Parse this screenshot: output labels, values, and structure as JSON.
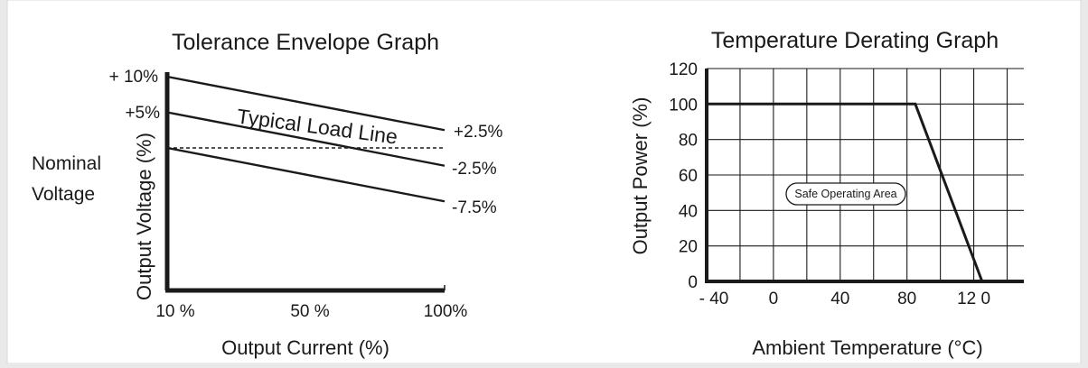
{
  "panel": {
    "background": "#ffffff",
    "border": "#d9d9d9",
    "page": "#e9e9e9",
    "ink": "#1a1a1a"
  },
  "chart_data": [
    {
      "type": "line",
      "title": "Tolerance Envelope Graph",
      "xlabel": "Output Current (%)",
      "ylabel": "Output Voltage (%)",
      "side_label": [
        "Nominal",
        "Voltage"
      ],
      "x_ticks": [
        "10 %",
        "50 %",
        "100%"
      ],
      "left_labels": [
        "+ 10%",
        "+5%"
      ],
      "right_labels": [
        "+2.5%",
        "-2.5%",
        "-7.5%"
      ],
      "annotation": "Typical Load Line",
      "xlim": [
        10,
        100
      ],
      "ylim": [
        -20,
        10
      ],
      "series": [
        {
          "x": [
            10,
            100
          ],
          "y": [
            10,
            2.5
          ]
        },
        {
          "x": [
            10,
            100
          ],
          "y": [
            5,
            -2.5
          ]
        },
        {
          "x": [
            10,
            100
          ],
          "y": [
            0,
            -7.5
          ]
        },
        {
          "x": [
            10,
            100
          ],
          "y": [
            0,
            0
          ],
          "dashed": true
        }
      ]
    },
    {
      "type": "line",
      "title": "Temperature Derating Graph",
      "xlabel": "Ambient Temperature (°C)",
      "ylabel": "Output Power (%)",
      "xlim": [
        -40,
        150
      ],
      "ylim": [
        0,
        120
      ],
      "x_ticks": [
        {
          "v": -40,
          "label": "- 40"
        },
        {
          "v": 0,
          "label": "0"
        },
        {
          "v": 40,
          "label": "40"
        },
        {
          "v": 80,
          "label": "80"
        },
        {
          "v": 120,
          "label": "12 0"
        }
      ],
      "y_ticks": [
        0,
        20,
        40,
        60,
        80,
        100,
        120
      ],
      "grid": true,
      "annotation": "Safe Operating Area",
      "series": [
        {
          "x": [
            -40,
            85,
            125
          ],
          "y": [
            100,
            100,
            0
          ]
        }
      ]
    }
  ]
}
